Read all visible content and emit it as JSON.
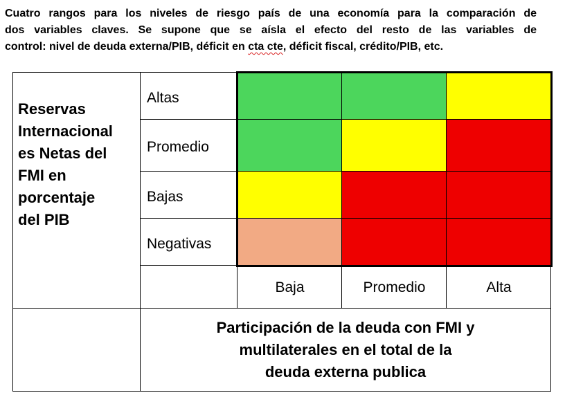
{
  "intro": {
    "line1": "Cuatro rangos para los niveles de riesgo país de una economía para la comparación de",
    "line2": "dos variables claves. Se supone que se aísla el efecto del resto de las variables de",
    "line3_pre": "control: nivel de deuda externa/PIB, déficit en ",
    "line3_mark": "cta cte",
    "line3_post": ", déficit fiscal, crédito/PIB, etc."
  },
  "row_axis": {
    "title_lines": [
      "Reservas",
      "Internacional",
      "es Netas del",
      "FMI en",
      "porcentaje",
      "del PIB"
    ],
    "levels": [
      "Altas",
      "Promedio",
      "Bajas",
      "Negativas"
    ]
  },
  "col_axis": {
    "levels": [
      "Baja",
      "Promedio",
      "Alta"
    ],
    "title_lines": [
      "Participación de la deuda con FMI y",
      "multilaterales en el total de la",
      "deuda externa publica"
    ]
  },
  "colors": {
    "green": "#4cd65c",
    "yellow": "#ffff00",
    "red": "#ee0000",
    "salmon": "#f2aa84"
  },
  "matrix": [
    [
      "green",
      "green",
      "yellow"
    ],
    [
      "green",
      "yellow",
      "red"
    ],
    [
      "yellow",
      "red",
      "red"
    ],
    [
      "salmon",
      "red",
      "red"
    ]
  ]
}
